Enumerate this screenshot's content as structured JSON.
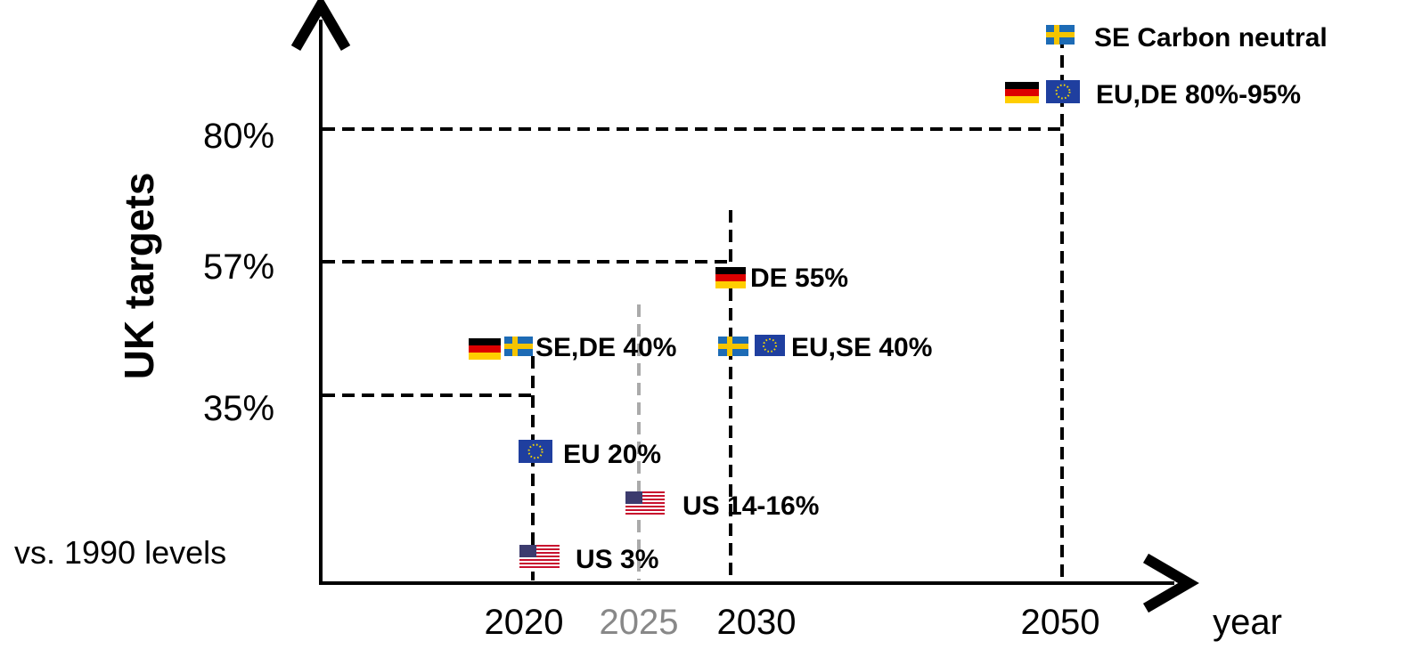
{
  "figure": {
    "y_axis_title": "UK targets",
    "baseline_label": "vs. 1990 levels",
    "x_axis_unit_label": "year"
  },
  "colors": {
    "dash": "#000000",
    "dash_grey": "#aaaaaa",
    "tick_grey": "#888888",
    "eu_blue": "#1f3f9f",
    "eu_star": "#f5d800",
    "se_blue": "#1d6bb5",
    "se_yellow": "#f5c400",
    "us_red": "#c8102e",
    "us_blue": "#3c3b6e"
  },
  "uk_targets": [
    {
      "label": "35%",
      "value": 35
    },
    {
      "label": "57%",
      "value": 57
    },
    {
      "label": "80%",
      "value": 80
    }
  ],
  "years": [
    {
      "label": "2020",
      "value": 2020,
      "style": "black"
    },
    {
      "label": "2025",
      "value": 2025,
      "style": "grey"
    },
    {
      "label": "2030",
      "value": 2030,
      "style": "black"
    },
    {
      "label": "2050",
      "value": 2050,
      "style": "black"
    }
  ],
  "annotations": [
    {
      "text": "SE Carbon neutral",
      "year": 2050,
      "flags": [
        "se-flag"
      ]
    },
    {
      "text": "EU,DE 80%-95%",
      "year": 2050,
      "flags": [
        "de-flag",
        "eu-flag"
      ]
    },
    {
      "text": "DE 55%",
      "year": 2030,
      "flags": [
        "de-flag"
      ]
    },
    {
      "text": "EU,SE 40%",
      "year": 2030,
      "flags": [
        "se-flag",
        "eu-flag"
      ]
    },
    {
      "text": "SE,DE 40%",
      "year": 2020,
      "flags": [
        "de-flag",
        "se-flag"
      ]
    },
    {
      "text": "EU 20%",
      "year": 2020,
      "flags": [
        "eu-flag"
      ]
    },
    {
      "text": "US 14-16%",
      "year": 2025,
      "flags": [
        "us-flag"
      ]
    },
    {
      "text": "US 3%",
      "year": 2020,
      "flags": [
        "us-flag"
      ]
    }
  ]
}
